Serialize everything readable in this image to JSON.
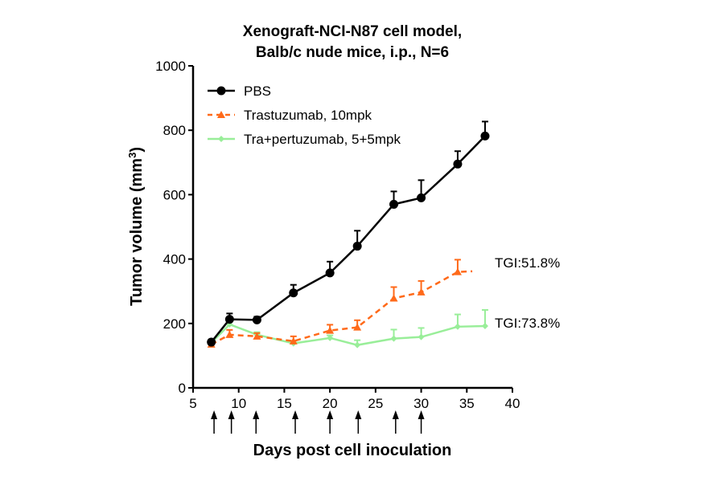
{
  "chart_data": {
    "type": "line",
    "title": [
      "Xenograft-NCI-N87 cell model,",
      "Balb/c nude mice, i.p., N=6"
    ],
    "xlabel": "Days post cell inoculation",
    "ylabel": "Tumor volume (mm",
    "ylabel_sup": "3",
    "ylabel_close": ")",
    "xlim": [
      5,
      40
    ],
    "ylim": [
      0,
      1000
    ],
    "xticks": [
      "5",
      "10",
      "15",
      "20",
      "25",
      "30",
      "35",
      "40"
    ],
    "yticks": [
      "0",
      "200",
      "400",
      "600",
      "800",
      "1000"
    ],
    "grid": false,
    "legend_position": "top-left",
    "series": [
      {
        "name": "PBS",
        "color": "#000000",
        "dash": false,
        "marker": "circle",
        "x": [
          7,
          9,
          12,
          16,
          20,
          23,
          27,
          30,
          34,
          37
        ],
        "y": [
          142,
          213,
          211,
          295,
          357,
          440,
          570,
          590,
          695,
          782
        ],
        "err": [
          8,
          18,
          10,
          25,
          35,
          48,
          40,
          55,
          40,
          45
        ]
      },
      {
        "name": "Trastuzumab, 10mpk",
        "color": "#ff6a1a",
        "dash": true,
        "marker": "triangle",
        "x": [
          7,
          9,
          12,
          16,
          20,
          23,
          27,
          30,
          34,
          35.6
        ],
        "y": [
          135,
          165,
          160,
          145,
          178,
          188,
          278,
          297,
          360,
          362
        ],
        "err": [
          6,
          15,
          10,
          15,
          18,
          22,
          35,
          35,
          38,
          0
        ]
      },
      {
        "name": "Tra+pertuzumab, 5+5mpk",
        "color": "#99ee99",
        "dash": false,
        "marker": "diamond",
        "x": [
          7,
          9,
          12,
          16,
          20,
          23,
          27,
          30,
          34,
          37
        ],
        "y": [
          140,
          197,
          165,
          138,
          155,
          133,
          153,
          158,
          190,
          192
        ],
        "err": [
          5,
          8,
          8,
          8,
          8,
          15,
          28,
          28,
          38,
          50
        ]
      }
    ],
    "annotations": [
      "TGI:51.8%",
      "TGI:73.8%"
    ],
    "dosing_days": [
      7.3,
      9.2,
      11.9,
      16.2,
      20,
      23.1,
      27.2,
      30
    ]
  }
}
